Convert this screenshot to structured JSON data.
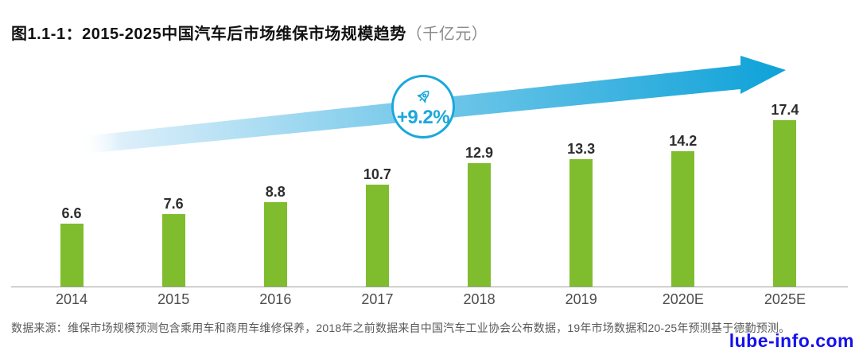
{
  "title": {
    "prefix": "图1.1-1：",
    "main": "2015-2025中国汽车后市场维保市场规模趋势",
    "unit": "（千亿元）"
  },
  "badge": {
    "label": "+9.2%",
    "icon": "rocket-icon"
  },
  "source_note": "数据来源：维保市场规模预测包含乘用车和商用车维修保养，2018年之前数据来自中国汽车工业协会公布数据，19年市场数据和20-25年预测基于德勤预测。",
  "watermark": "lube-info.com",
  "colors": {
    "bar_green": "#7fbd2e",
    "arrow_blue": "#12a3d8",
    "badge_blue": "#1ba7dc",
    "watermark_blue": "#1411ee",
    "value_label": "#2e2e2e",
    "axis_label": "#4d4d4d",
    "note_gray": "#595959"
  },
  "chart_data": {
    "type": "bar",
    "categories": [
      "2014",
      "2015",
      "2016",
      "2017",
      "2018",
      "2019",
      "2020E",
      "2025E"
    ],
    "values": [
      6.6,
      7.6,
      8.8,
      10.7,
      12.9,
      13.3,
      14.2,
      17.4
    ],
    "title": "图1.1-1：2015-2025中国汽车后市场维保市场规模趋势（千亿元）",
    "xlabel": "",
    "ylabel": "千亿元",
    "ylim": [
      0,
      20
    ],
    "grid": false,
    "legend": false,
    "annotation": "CAGR +9.2% (growth arrow from 2014 to 2025E)",
    "data_labels": true
  }
}
